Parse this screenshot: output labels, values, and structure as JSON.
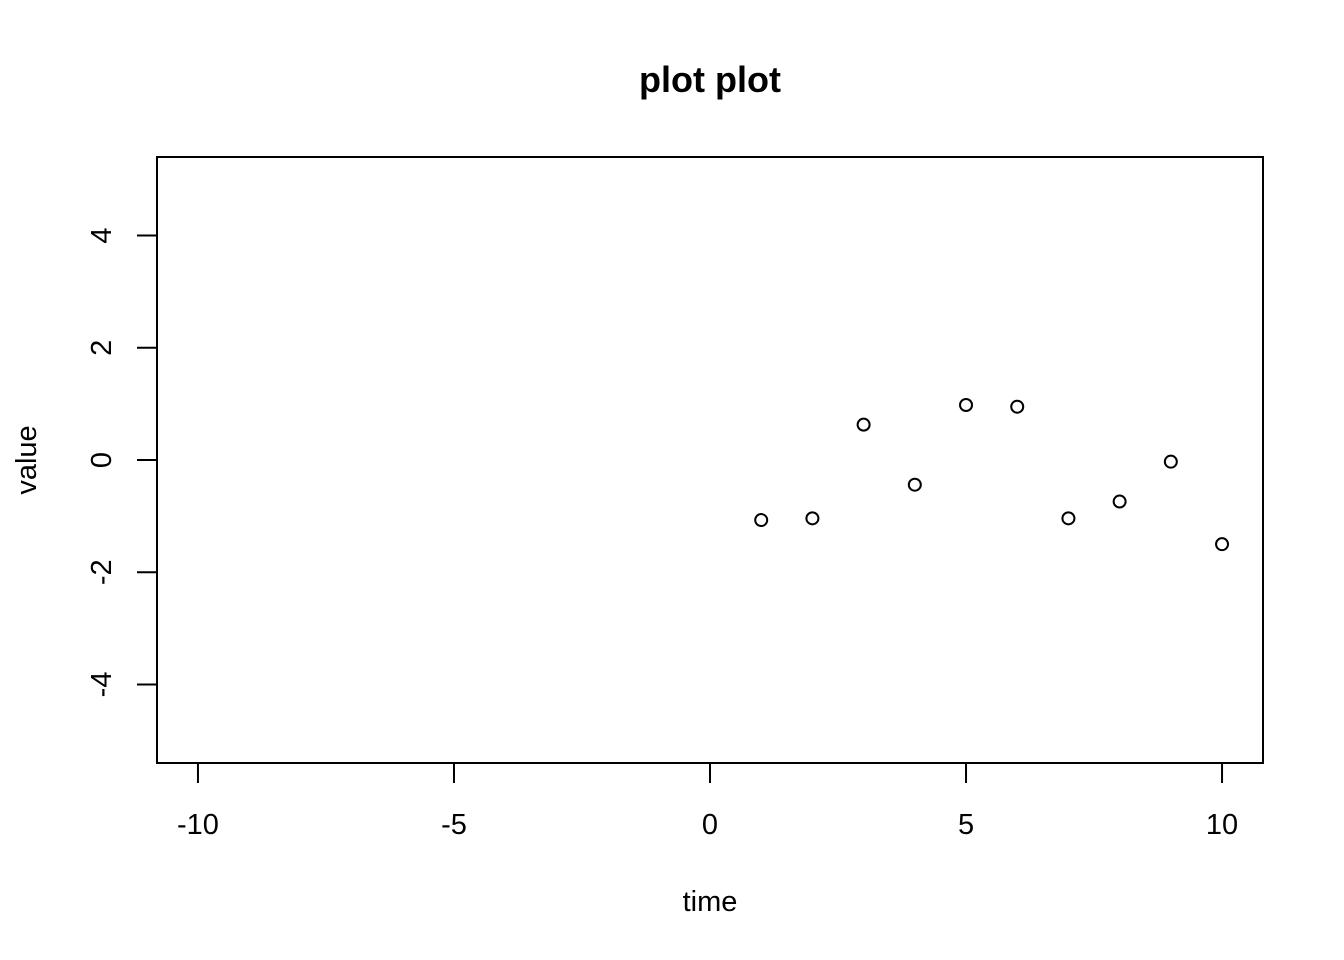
{
  "chart_data": {
    "type": "scatter",
    "title": "plot plot",
    "xlabel": "time",
    "ylabel": "value",
    "xlim": [
      -10.8,
      10.8
    ],
    "ylim": [
      -5.4,
      5.4
    ],
    "x_ticks": [
      -10,
      -5,
      0,
      5,
      10
    ],
    "x_tick_labels": [
      "-10",
      "-5",
      "0",
      "5",
      "10"
    ],
    "y_ticks": [
      -4,
      -2,
      0,
      2,
      4
    ],
    "y_tick_labels": [
      "-4",
      "-2",
      "0",
      "2",
      "4"
    ],
    "grid": false,
    "marker": "open-circle",
    "color": "#000000",
    "x": [
      1,
      2,
      3,
      4,
      5,
      6,
      7,
      8,
      9,
      10
    ],
    "y": [
      -1.07,
      -1.04,
      0.63,
      -0.44,
      0.98,
      0.95,
      -1.04,
      -0.74,
      -0.03,
      -1.5
    ]
  }
}
